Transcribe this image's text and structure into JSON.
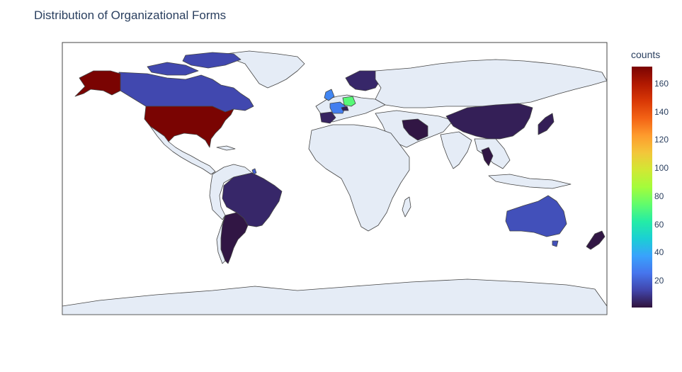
{
  "title": "Distribution of Organizational Forms",
  "colorbar": {
    "title": "counts",
    "min": 1,
    "max": 172,
    "ticks": [
      "160",
      "140",
      "120",
      "100",
      "80",
      "60",
      "40",
      "20"
    ],
    "tick_values": [
      160,
      140,
      120,
      100,
      80,
      60,
      40,
      20
    ],
    "colorscale": [
      "#30123b",
      "#4145ab",
      "#4675ed",
      "#39a2fc",
      "#1bcfd4",
      "#24eca6",
      "#61fc6c",
      "#a4fc3b",
      "#d1e834",
      "#f3c63a",
      "#fe9b2d",
      "#f36315",
      "#d93806",
      "#b11901",
      "#7a0402"
    ]
  },
  "chart_data": {
    "type": "choropleth",
    "title": "Distribution of Organizational Forms",
    "colorbar_title": "counts",
    "range": [
      1,
      172
    ],
    "colors": {
      "land_default": "#e5ecf6",
      "frame": "#444444",
      "ocean": "#ffffff"
    },
    "regions": [
      {
        "name": "United States",
        "value": 172
      },
      {
        "name": "Canada",
        "value": 14
      },
      {
        "name": "Germany",
        "value": 72
      },
      {
        "name": "France",
        "value": 28
      },
      {
        "name": "United Kingdom",
        "value": 30
      },
      {
        "name": "Australia",
        "value": 16
      },
      {
        "name": "Brazil",
        "value": 6
      },
      {
        "name": "Argentina",
        "value": 2
      },
      {
        "name": "China",
        "value": 4
      },
      {
        "name": "Japan",
        "value": 4
      },
      {
        "name": "Iran",
        "value": 2
      },
      {
        "name": "Thailand",
        "value": 2
      },
      {
        "name": "Spain",
        "value": 5
      },
      {
        "name": "Sweden",
        "value": 6
      },
      {
        "name": "Norway",
        "value": 6
      },
      {
        "name": "Finland",
        "value": 4
      },
      {
        "name": "Switzerland",
        "value": 4
      },
      {
        "name": "New Zealand",
        "value": 2
      },
      {
        "name": "French Guiana",
        "value": 20
      }
    ]
  }
}
